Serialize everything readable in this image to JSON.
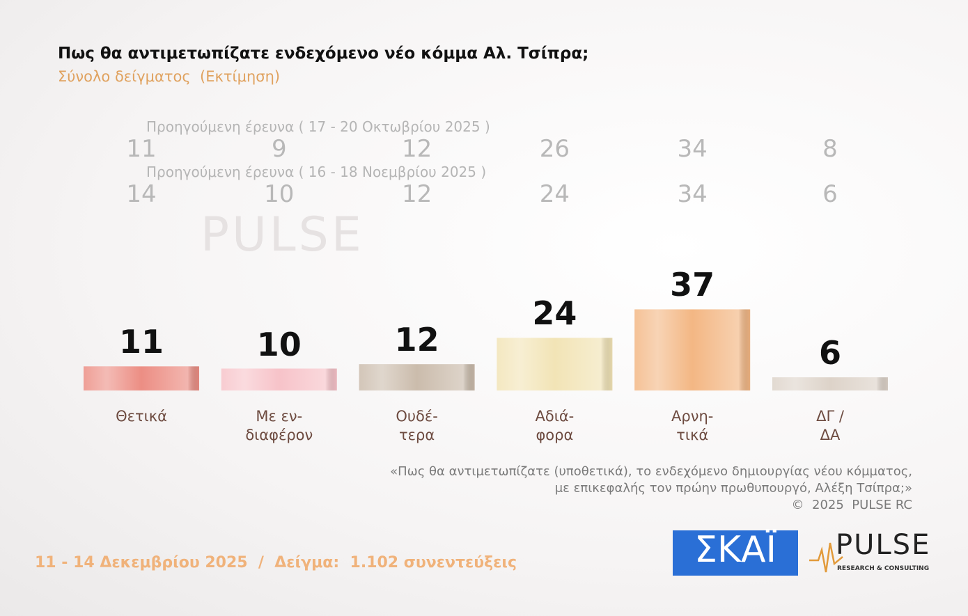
{
  "chart_data": {
    "type": "bar",
    "title": "Πως θα αντιμετωπίζατε ενδεχόμενο νέο κόμμα Αλ. Τσίπρα;",
    "subtitle": "Σύνολο δείγματος  (Εκτίμηση)",
    "categories": [
      "Θετικά",
      "Με εν-\nδιαφέρον",
      "Ουδέ-\nτερα",
      "Αδιά-\nφορα",
      "Αρνη-\nτικά",
      "ΔΓ /\nΔΑ"
    ],
    "series": [
      {
        "values": [
          11,
          10,
          12,
          24,
          37,
          6
        ],
        "colors": [
          "#ec8e84",
          "#f7c3c9",
          "#cbbcac",
          "#f2e4b6",
          "#f3b784",
          "#ddd3c9"
        ]
      }
    ],
    "previous": [
      {
        "label": "Προηγούμενη έρευνα ( 17 - 20 Οκτωβρίου 2025 )",
        "values": [
          11,
          9,
          12,
          26,
          34,
          8
        ]
      },
      {
        "label": "Προηγούμενη έρευνα ( 16 - 18 Νοεμβρίου 2025 )",
        "values": [
          14,
          10,
          12,
          24,
          34,
          6
        ]
      }
    ],
    "note": [
      "«Πως θα αντιμετωπίζατε (υποθετικά), το ενδεχόμενο δημιουργίας νέου κόμματος,",
      "με επικεφαλής τον πρώην πρωθυπουργό, Αλέξη Τσίπρα;»",
      "©  2025  PULSE RC"
    ],
    "footer": "11 - 14 Δεκεμβρίου 2025  /  Δείγμα:  1.102 συνεντεύξεις",
    "logos": {
      "broadcaster": "ΣΚΑΪ",
      "pollster": "PULSE",
      "pollster_tagline": "RESEARCH & CONSULTING"
    }
  }
}
